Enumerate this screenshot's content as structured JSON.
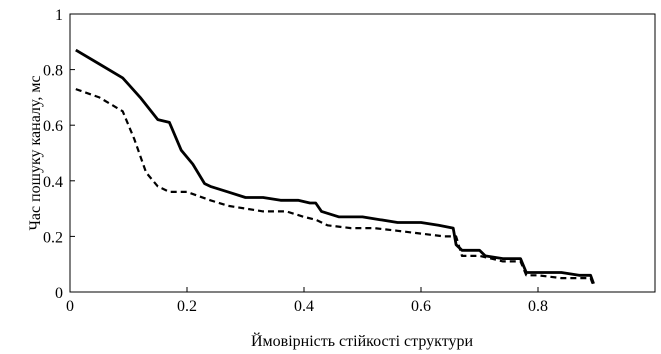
{
  "chart_data": {
    "type": "line",
    "title": "",
    "xlabel": "Ймовірність стійкості структури",
    "ylabel": "Час пошуку каналу, мс",
    "xlim": [
      0,
      1
    ],
    "ylim": [
      0,
      1
    ],
    "x_ticks": [
      "0",
      "0.2",
      "0.4",
      "0.6",
      "0.8"
    ],
    "y_ticks": [
      "0",
      "0.2",
      "0.4",
      "0.6",
      "0.8",
      "1"
    ],
    "grid": false,
    "legend": "none",
    "series": [
      {
        "style": "solid",
        "x": [
          0.01,
          0.05,
          0.09,
          0.12,
          0.15,
          0.17,
          0.18,
          0.19,
          0.21,
          0.23,
          0.24,
          0.27,
          0.3,
          0.33,
          0.36,
          0.39,
          0.41,
          0.42,
          0.43,
          0.46,
          0.5,
          0.53,
          0.56,
          0.6,
          0.63,
          0.655,
          0.66,
          0.67,
          0.7,
          0.71,
          0.74,
          0.77,
          0.78,
          0.8,
          0.84,
          0.87,
          0.89,
          0.895
        ],
        "y": [
          0.87,
          0.82,
          0.77,
          0.7,
          0.62,
          0.61,
          0.56,
          0.51,
          0.46,
          0.39,
          0.38,
          0.36,
          0.34,
          0.34,
          0.33,
          0.33,
          0.32,
          0.32,
          0.29,
          0.27,
          0.27,
          0.26,
          0.25,
          0.25,
          0.24,
          0.23,
          0.17,
          0.15,
          0.15,
          0.13,
          0.12,
          0.12,
          0.07,
          0.07,
          0.07,
          0.06,
          0.06,
          0.03
        ]
      },
      {
        "style": "dashed",
        "x": [
          0.01,
          0.05,
          0.09,
          0.11,
          0.13,
          0.15,
          0.17,
          0.2,
          0.24,
          0.27,
          0.3,
          0.33,
          0.37,
          0.4,
          0.42,
          0.44,
          0.48,
          0.52,
          0.56,
          0.6,
          0.64,
          0.66,
          0.67,
          0.7,
          0.72,
          0.74,
          0.77,
          0.78,
          0.8,
          0.84,
          0.87,
          0.89,
          0.895
        ],
        "y": [
          0.73,
          0.7,
          0.65,
          0.55,
          0.43,
          0.38,
          0.36,
          0.36,
          0.33,
          0.31,
          0.3,
          0.29,
          0.29,
          0.27,
          0.26,
          0.24,
          0.23,
          0.23,
          0.22,
          0.21,
          0.2,
          0.2,
          0.13,
          0.13,
          0.12,
          0.11,
          0.11,
          0.06,
          0.06,
          0.05,
          0.05,
          0.05,
          0.02
        ]
      }
    ]
  }
}
